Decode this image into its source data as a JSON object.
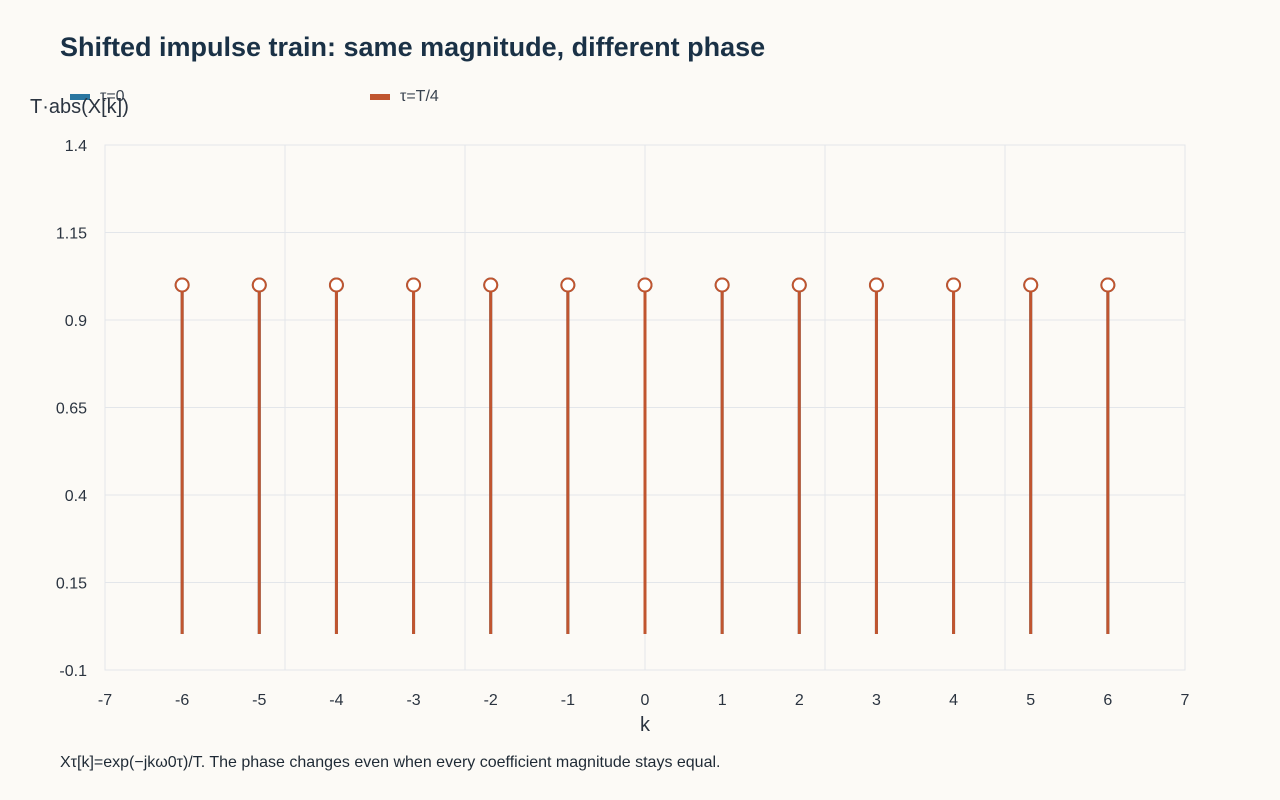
{
  "chart_data": {
    "type": "stem",
    "title": "Shifted impulse train: same magnitude, different phase",
    "xlabel": "k",
    "ylabel": "T·abs(X[k])",
    "xlim": [
      -7,
      7
    ],
    "ylim": [
      -0.1,
      1.4
    ],
    "x_ticks": [
      "-7",
      "-6",
      "-5",
      "-4",
      "-3",
      "-2",
      "-1",
      "0",
      "1",
      "2",
      "3",
      "4",
      "5",
      "6",
      "7"
    ],
    "y_ticks": [
      "-0.1",
      "0.15",
      "0.4",
      "0.65",
      "0.9",
      "1.15",
      "1.4"
    ],
    "grid": true,
    "legend_position": "top-left",
    "x": [
      -6,
      -5,
      -4,
      -3,
      -2,
      -1,
      0,
      1,
      2,
      3,
      4,
      5,
      6
    ],
    "series": [
      {
        "name": "τ=0",
        "color": "#2a76a0",
        "values": [
          1,
          1,
          1,
          1,
          1,
          1,
          1,
          1,
          1,
          1,
          1,
          1,
          1
        ]
      },
      {
        "name": "τ=T/4",
        "color": "#c0552f",
        "values": [
          1,
          1,
          1,
          1,
          1,
          1,
          1,
          1,
          1,
          1,
          1,
          1,
          1
        ]
      }
    ],
    "caption": "Xτ[k]=exp(−jkω0τ)/T. The phase changes even when every coefficient magnitude stays equal."
  }
}
